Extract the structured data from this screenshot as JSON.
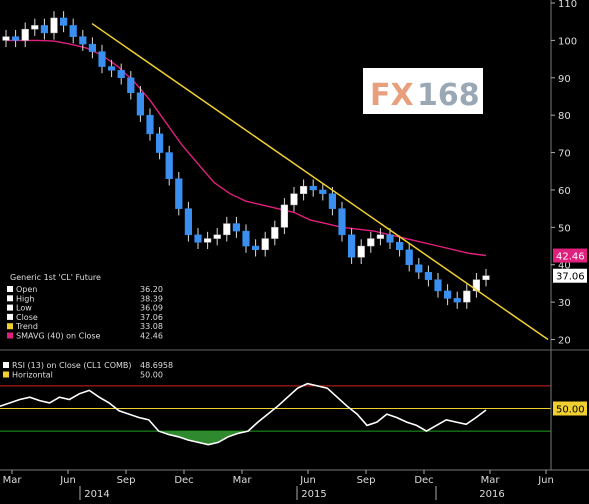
{
  "chart_data": [
    {
      "type": "candlestick",
      "legend_placement": "bottom-left",
      "legend": {
        "title": "Generic 1st 'CL' Future",
        "rows": [
          {
            "label": "Open",
            "value": "36.20",
            "color": "#ffffff"
          },
          {
            "label": "High",
            "value": "38.39",
            "color": "#ffffff"
          },
          {
            "label": "Low",
            "value": "36.09",
            "color": "#ffffff"
          },
          {
            "label": "Close",
            "value": "37.06",
            "color": "#ffffff"
          },
          {
            "label": "Trend",
            "value": "33.08",
            "color": "#f0d030"
          },
          {
            "label": "SMAVG (40) on Close",
            "value": "42.46",
            "color": "#e0207c"
          }
        ]
      },
      "ylim": [
        18,
        110
      ],
      "y_ticks": [
        20,
        30,
        40,
        50,
        60,
        70,
        80,
        90,
        100,
        110
      ],
      "x_ticks": [
        "Mar",
        "Jun",
        "Sep",
        "Dec",
        "Mar",
        "Jun",
        "Sep",
        "Dec",
        "Mar",
        "Jun"
      ],
      "x_years": [
        "2014",
        "2015",
        "2016"
      ],
      "price_labels": [
        {
          "value": 42.46,
          "text": "42.46",
          "bg": "#e0207c",
          "fg": "#ffffff"
        },
        {
          "value": 37.06,
          "text": "37.06",
          "bg": "#ffffff",
          "fg": "#000000"
        }
      ],
      "weekly_close": [
        101,
        100,
        103,
        104,
        102,
        106,
        104,
        101,
        99,
        97,
        93,
        92,
        90,
        86,
        80,
        75,
        70,
        63,
        55,
        48,
        46,
        47,
        48,
        51,
        49,
        45,
        44,
        47,
        50,
        56,
        59,
        61,
        60,
        59,
        55,
        48,
        42,
        45,
        47,
        48,
        46,
        44,
        40,
        38,
        36,
        33,
        31,
        30,
        33,
        36,
        37.06
      ],
      "sma40": [
        100,
        100,
        100,
        99.8,
        99,
        98,
        96,
        93,
        89,
        84,
        78,
        72,
        67,
        62,
        59,
        57,
        56,
        55,
        54,
        52,
        51,
        50,
        49.5,
        49,
        48,
        47,
        46,
        45,
        44,
        43,
        42.46
      ],
      "trend": {
        "start_value": 104.5,
        "end_value": 20
      },
      "series": [
        {
          "name": "Price",
          "color": "#3a8ff0"
        },
        {
          "name": "SMAVG (40) on Close",
          "color": "#e0207c"
        },
        {
          "name": "Trend",
          "color": "#f0d030"
        }
      ]
    },
    {
      "type": "line",
      "legend": {
        "rows": [
          {
            "label": "RSI (13) on Close (CL1 COMB)",
            "value": "48.6958",
            "color": "#ffffff"
          },
          {
            "label": "Horizontal",
            "value": "50.00",
            "color": "#f0d030"
          }
        ]
      },
      "ylim": [
        0,
        100
      ],
      "reference_lines": [
        {
          "value": 70,
          "color": "#d02020"
        },
        {
          "value": 50,
          "color": "#f0d030"
        },
        {
          "value": 30,
          "color": "#20a020"
        }
      ],
      "price_labels": [
        {
          "value": 50,
          "text": "50.00",
          "bg": "#f0d030",
          "fg": "#000000"
        }
      ],
      "values": [
        52,
        55,
        58,
        60,
        57,
        55,
        60,
        58,
        63,
        66,
        60,
        55,
        48,
        45,
        42,
        40,
        30,
        27,
        25,
        22,
        20,
        18,
        20,
        25,
        28,
        30,
        38,
        45,
        52,
        60,
        68,
        72,
        70,
        68,
        60,
        52,
        45,
        35,
        38,
        45,
        42,
        38,
        35,
        30,
        35,
        40,
        38,
        36,
        42,
        48.6958
      ],
      "series": [
        {
          "name": "RSI (13) on Close (CL1 COMB)",
          "color": "#ffffff"
        }
      ]
    }
  ],
  "watermark": {
    "part1": "FX",
    "part2": "168"
  }
}
